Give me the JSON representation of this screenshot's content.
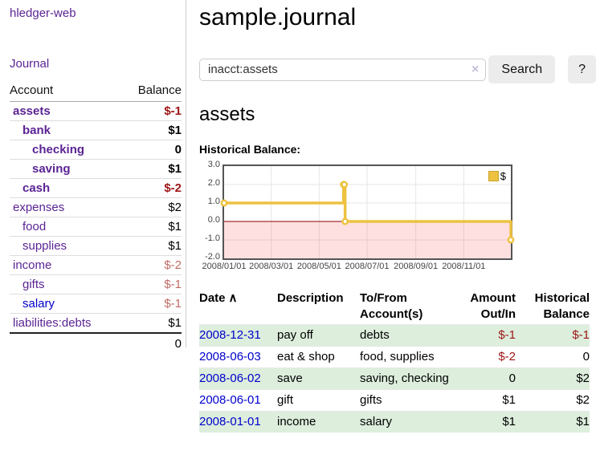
{
  "sidebar": {
    "brand": "hledger-web",
    "nav": [
      {
        "label": "Journal"
      }
    ],
    "accounts_table": {
      "headers": {
        "account": "Account",
        "balance": "Balance"
      },
      "rows": [
        {
          "name": "assets",
          "indent": 1,
          "bold": true,
          "balance": "$-1",
          "balance_style": "neg-strong",
          "link_style": "purple"
        },
        {
          "name": "bank",
          "indent": 2,
          "bold": true,
          "balance": "$1",
          "balance_style": "strong",
          "link_style": "purple"
        },
        {
          "name": "checking",
          "indent": 3,
          "bold": true,
          "balance": "0",
          "balance_style": "strong",
          "link_style": "purple"
        },
        {
          "name": "saving",
          "indent": 3,
          "bold": true,
          "balance": "$1",
          "balance_style": "strong",
          "link_style": "purple"
        },
        {
          "name": "cash",
          "indent": 2,
          "bold": true,
          "balance": "$-2",
          "balance_style": "neg-strong",
          "link_style": "purple"
        },
        {
          "name": "expenses",
          "indent": 1,
          "bold": false,
          "balance": "$2",
          "balance_style": "normal",
          "link_style": "purple"
        },
        {
          "name": "food",
          "indent": 2,
          "bold": false,
          "balance": "$1",
          "balance_style": "normal",
          "link_style": "purple"
        },
        {
          "name": "supplies",
          "indent": 2,
          "bold": false,
          "balance": "$1",
          "balance_style": "normal",
          "link_style": "purple"
        },
        {
          "name": "income",
          "indent": 1,
          "bold": false,
          "balance": "$-2",
          "balance_style": "neg-soft",
          "link_style": "purple"
        },
        {
          "name": "gifts",
          "indent": 2,
          "bold": false,
          "balance": "$-1",
          "balance_style": "neg-soft",
          "link_style": "purple"
        },
        {
          "name": "salary",
          "indent": 2,
          "bold": false,
          "balance": "$-1",
          "balance_style": "neg-soft",
          "link_style": "blue"
        },
        {
          "name": "liabilities:debts",
          "indent": 1,
          "bold": false,
          "balance": "$1",
          "balance_style": "normal",
          "link_style": "purple"
        }
      ],
      "total": "0"
    }
  },
  "header": {
    "title": "sample.journal"
  },
  "search": {
    "value": "inacct:assets",
    "clear_icon": "×",
    "button": "Search",
    "help_button": "?"
  },
  "account_page": {
    "heading": "assets",
    "chart_label": "Historical Balance:"
  },
  "chart_data": {
    "type": "line",
    "title": "Historical Balance of assets",
    "step": true,
    "series": [
      {
        "name": "$",
        "color": "#edc240",
        "points": [
          [
            "2008-01-01",
            1
          ],
          [
            "2008-06-01",
            2
          ],
          [
            "2008-06-02",
            2
          ],
          [
            "2008-06-03",
            0
          ],
          [
            "2008-12-31",
            -1
          ]
        ]
      }
    ],
    "xlim": [
      "2008-01-01",
      "2008-12-31"
    ],
    "ylim": [
      -2,
      3
    ],
    "y_ticks": [
      "3.0",
      "2.0",
      "1.0",
      "0.0",
      "-1.0",
      "-2.0"
    ],
    "x_ticks": [
      "2008/01/01",
      "2008/03/01",
      "2008/05/01",
      "2008/07/01",
      "2008/09/01",
      "2008/11/01"
    ],
    "grid": true,
    "grid_color": "#e6e6e6",
    "negative_region_color": "rgba(255,0,0,0.12)",
    "zero_line_color": "#8b0000",
    "plot_border_color": "#545454",
    "legend": "$",
    "legend_position": "top-right"
  },
  "register_table": {
    "headers": [
      "Date",
      "Description",
      "To/From Account(s)",
      "Amount Out/In",
      "Historical Balance"
    ],
    "sort_icon": "∧",
    "rows": [
      {
        "date": "2008-12-31",
        "description": "pay off",
        "accounts": "debts",
        "amount": "$-1",
        "amount_neg": true,
        "balance": "$-1",
        "balance_neg": true
      },
      {
        "date": "2008-06-03",
        "description": "eat & shop",
        "accounts": "food, supplies",
        "amount": "$-2",
        "amount_neg": true,
        "balance": "0",
        "balance_neg": false
      },
      {
        "date": "2008-06-02",
        "description": "save",
        "accounts": "saving, checking",
        "amount": "0",
        "amount_neg": false,
        "balance": "$2",
        "balance_neg": false
      },
      {
        "date": "2008-06-01",
        "description": "gift",
        "accounts": "gifts",
        "amount": "$1",
        "amount_neg": false,
        "balance": "$2",
        "balance_neg": false
      },
      {
        "date": "2008-01-01",
        "description": "income",
        "accounts": "salary",
        "amount": "$1",
        "amount_neg": false,
        "balance": "$1",
        "balance_neg": false
      }
    ]
  },
  "colors": {
    "link_purple": "#5b2494",
    "link_blue": "#0000cc",
    "negative_strong": "#9c1515",
    "negative_soft": "#bf6b66",
    "row_green": "#ddeedd",
    "chart_gold": "#edc240",
    "button_gray": "#ececec"
  }
}
